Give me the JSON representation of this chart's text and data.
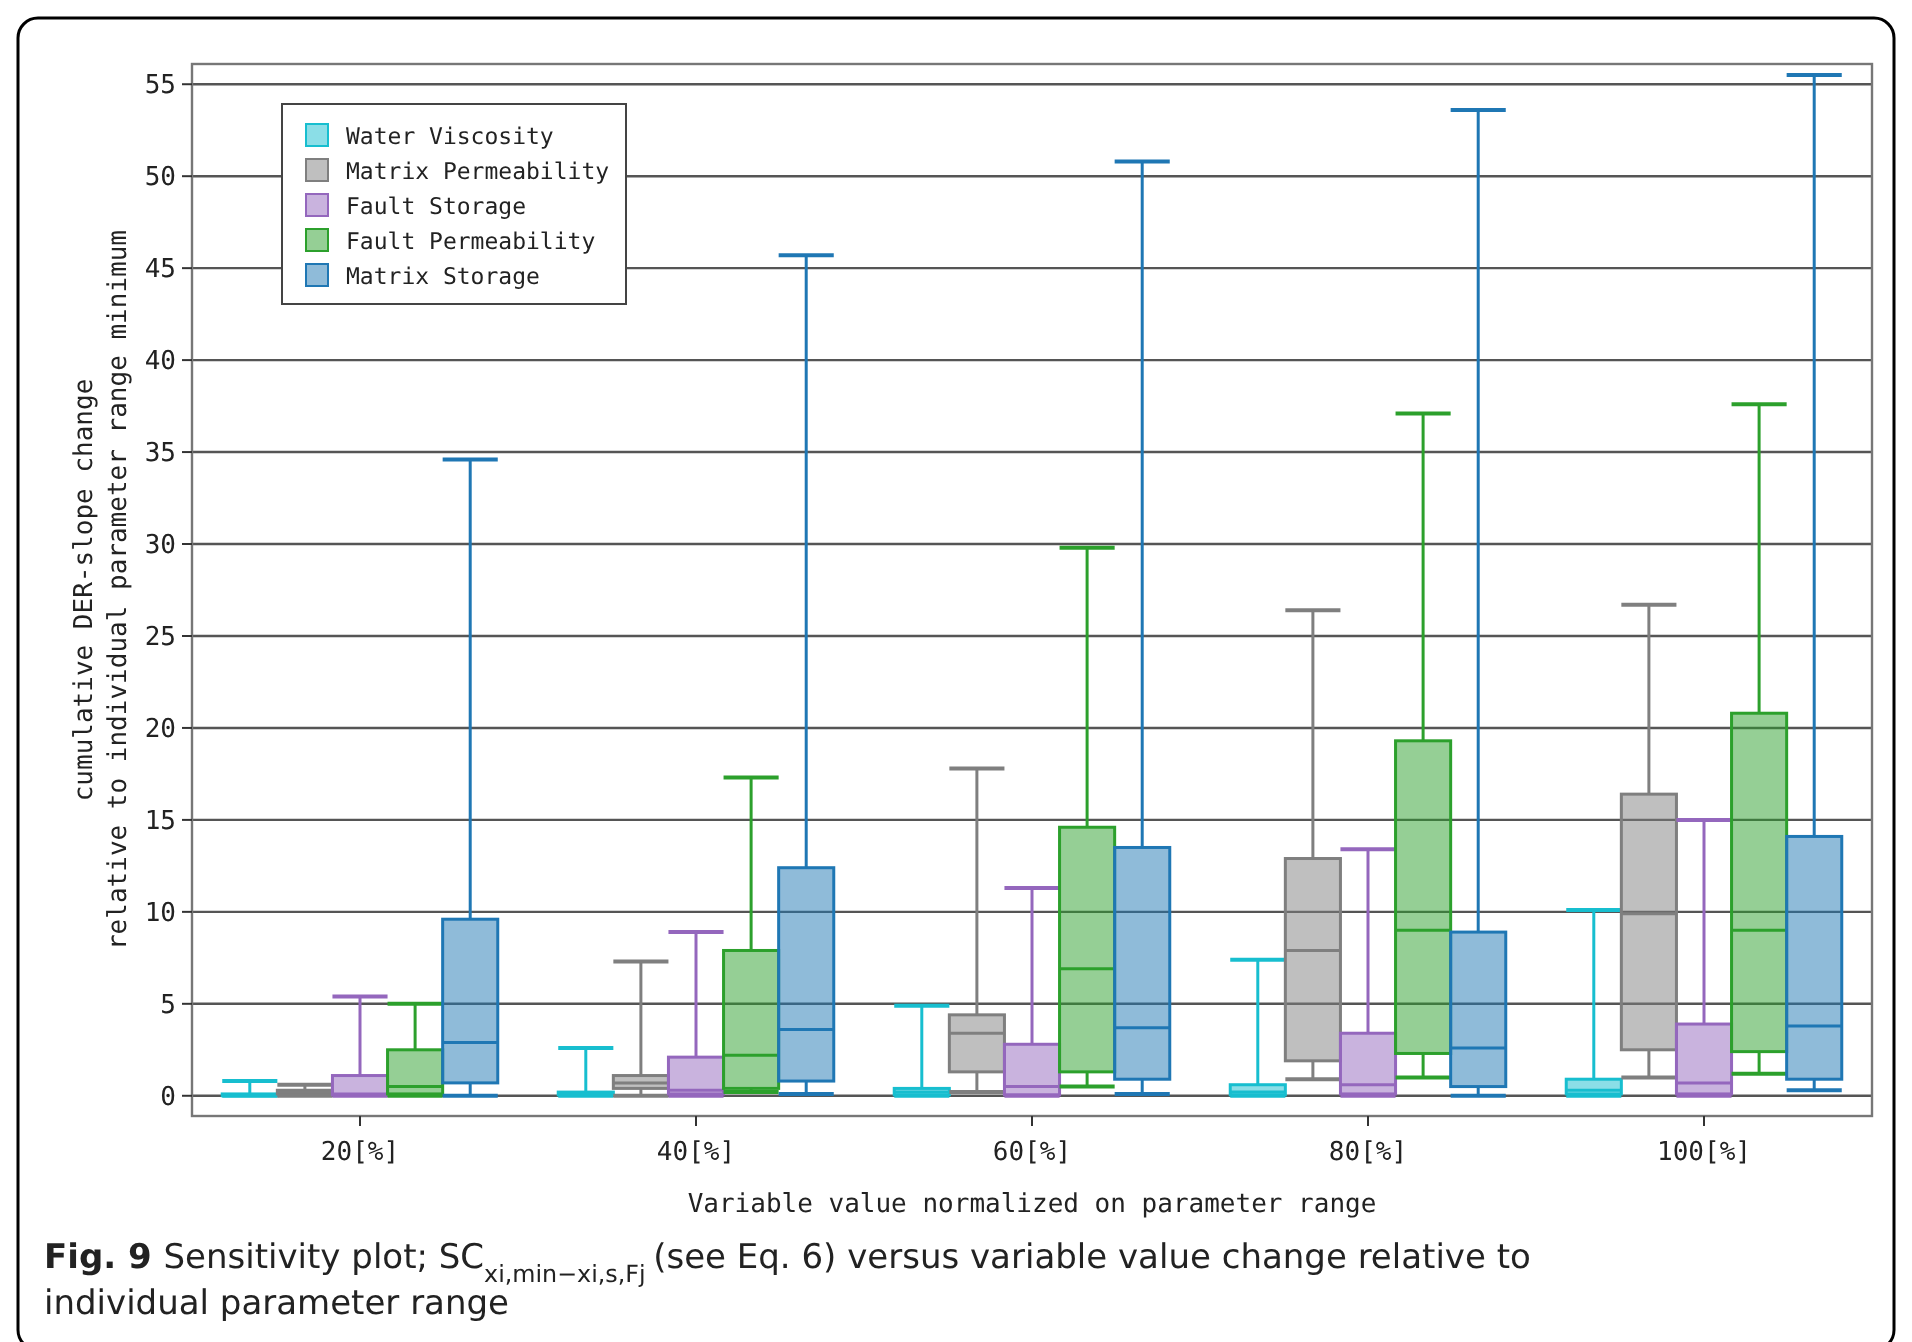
{
  "chart_data": {
    "type": "box",
    "xlabel": "Variable value normalized on parameter range",
    "ylabel": "cumulative DER-slope change\nrelative to individual parameter range minimum",
    "categories": [
      "20[%]",
      "40[%]",
      "60[%]",
      "80[%]",
      "100[%]"
    ],
    "ylim": [
      -1.1,
      56.1
    ],
    "yticks": [
      0,
      5,
      10,
      15,
      20,
      25,
      30,
      35,
      40,
      45,
      50,
      55
    ],
    "grid": "y",
    "legend": "top left",
    "series": [
      {
        "name": "Water Viscosity",
        "color": "#17becf",
        "boxes": [
          {
            "low": 0,
            "q1": 0,
            "median": 0.05,
            "q3": 0.1,
            "high": 0.8
          },
          {
            "low": 0,
            "q1": 0.05,
            "median": 0.1,
            "q3": 0.2,
            "high": 2.6
          },
          {
            "low": 0,
            "q1": 0.05,
            "median": 0.2,
            "q3": 0.4,
            "high": 4.9
          },
          {
            "low": 0,
            "q1": 0.05,
            "median": 0.2,
            "q3": 0.6,
            "high": 7.4
          },
          {
            "low": 0,
            "q1": 0.1,
            "median": 0.3,
            "q3": 0.9,
            "high": 10.1
          }
        ]
      },
      {
        "name": "Matrix Permeability",
        "color": "#7f7f7f",
        "boxes": [
          {
            "low": 0,
            "q1": 0.1,
            "median": 0.2,
            "q3": 0.3,
            "high": 0.6
          },
          {
            "low": 0,
            "q1": 0.4,
            "median": 0.7,
            "q3": 1.1,
            "high": 7.3
          },
          {
            "low": 0.2,
            "q1": 1.3,
            "median": 3.4,
            "q3": 4.4,
            "high": 17.8
          },
          {
            "low": 0.9,
            "q1": 1.9,
            "median": 7.9,
            "q3": 12.9,
            "high": 26.4
          },
          {
            "low": 1,
            "q1": 2.5,
            "median": 9.9,
            "q3": 16.4,
            "high": 26.7
          }
        ]
      },
      {
        "name": "Fault Storage",
        "color": "#9467bd",
        "boxes": [
          {
            "low": 0,
            "q1": 0.05,
            "median": 0.1,
            "q3": 1.1,
            "high": 5.4
          },
          {
            "low": 0,
            "q1": 0.1,
            "median": 0.3,
            "q3": 2.1,
            "high": 8.9
          },
          {
            "low": 0,
            "q1": 0.05,
            "median": 0.5,
            "q3": 2.8,
            "high": 11.3
          },
          {
            "low": 0,
            "q1": 0.1,
            "median": 0.6,
            "q3": 3.4,
            "high": 13.4
          },
          {
            "low": 0,
            "q1": 0.1,
            "median": 0.7,
            "q3": 3.9,
            "high": 15
          }
        ]
      },
      {
        "name": "Fault Permeability",
        "color": "#2ca02c",
        "boxes": [
          {
            "low": 0,
            "q1": 0.1,
            "median": 0.5,
            "q3": 2.5,
            "high": 5
          },
          {
            "low": 0.2,
            "q1": 0.4,
            "median": 2.2,
            "q3": 7.9,
            "high": 17.3
          },
          {
            "low": 0.5,
            "q1": 1.3,
            "median": 6.9,
            "q3": 14.6,
            "high": 29.8
          },
          {
            "low": 1,
            "q1": 2.3,
            "median": 9,
            "q3": 19.3,
            "high": 37.1
          },
          {
            "low": 1.2,
            "q1": 2.4,
            "median": 9,
            "q3": 20.8,
            "high": 37.6
          }
        ]
      },
      {
        "name": "Matrix Storage",
        "color": "#1f77b4",
        "boxes": [
          {
            "low": 0,
            "q1": 0.7,
            "median": 2.9,
            "q3": 9.6,
            "high": 34.6
          },
          {
            "low": 0.1,
            "q1": 0.8,
            "median": 3.6,
            "q3": 12.4,
            "high": 45.7
          },
          {
            "low": 0.1,
            "q1": 0.9,
            "median": 3.7,
            "q3": 13.5,
            "high": 50.8
          },
          {
            "low": 0,
            "q1": 0.5,
            "median": 2.6,
            "q3": 8.9,
            "high": 53.6
          },
          {
            "low": 0.3,
            "q1": 0.9,
            "median": 3.8,
            "q3": 14.1,
            "high": 55.5
          }
        ]
      }
    ],
    "annotations": [
      "Fig. 9",
      "Sensitivity plot; SC$_{xi,min−xi,s,Fj}$ (see Eq. 6) versus variable value change relative to individual parameter range"
    ]
  }
}
